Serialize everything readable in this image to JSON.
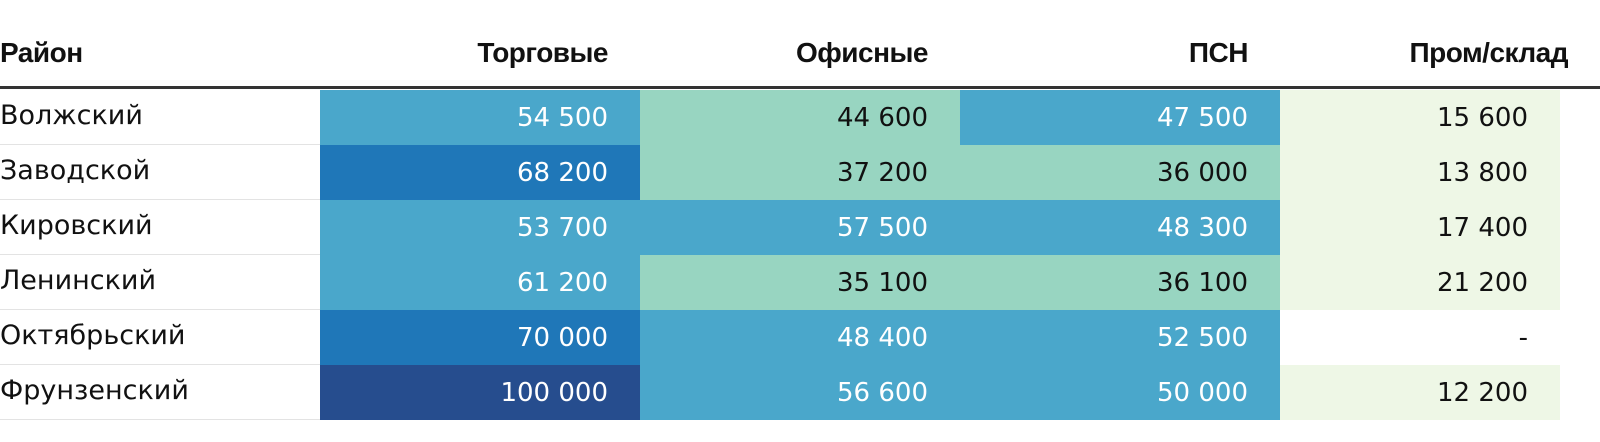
{
  "chart_data": {
    "type": "table",
    "columns": [
      "Район",
      "Торговые",
      "Офисные",
      "ПСН",
      "Пром/склад"
    ],
    "rows": [
      {
        "name": "Волжский",
        "values": [
          "54 500",
          "44 600",
          "47 500",
          "15 600"
        ],
        "levels": [
          2,
          1,
          2,
          0
        ]
      },
      {
        "name": "Заводской",
        "values": [
          "68 200",
          "37 200",
          "36 000",
          "13 800"
        ],
        "levels": [
          3,
          1,
          1,
          0
        ]
      },
      {
        "name": "Кировский",
        "values": [
          "53 700",
          "57 500",
          "48 300",
          "17 400"
        ],
        "levels": [
          2,
          2,
          2,
          0
        ]
      },
      {
        "name": "Ленинский",
        "values": [
          "61 200",
          "35 100",
          "36 100",
          "21 200"
        ],
        "levels": [
          2,
          1,
          1,
          0
        ]
      },
      {
        "name": "Октябрьский",
        "values": [
          "70 000",
          "48 400",
          "52 500",
          "-"
        ],
        "levels": [
          3,
          2,
          2,
          -1
        ]
      },
      {
        "name": "Фрунзенский",
        "values": [
          "100 000",
          "56 600",
          "50 000",
          "12 200"
        ],
        "levels": [
          4,
          2,
          2,
          0
        ]
      }
    ],
    "color_scale": [
      {
        "level": 0,
        "bg": "#eef7e6",
        "text": "#111111"
      },
      {
        "level": 1,
        "bg": "#98d5c1",
        "text": "#111111"
      },
      {
        "level": 2,
        "bg": "#4aa7cb",
        "text": "#ffffff"
      },
      {
        "level": 3,
        "bg": "#1f77b8",
        "text": "#ffffff"
      },
      {
        "level": 4,
        "bg": "#264d8e",
        "text": "#ffffff"
      }
    ]
  }
}
